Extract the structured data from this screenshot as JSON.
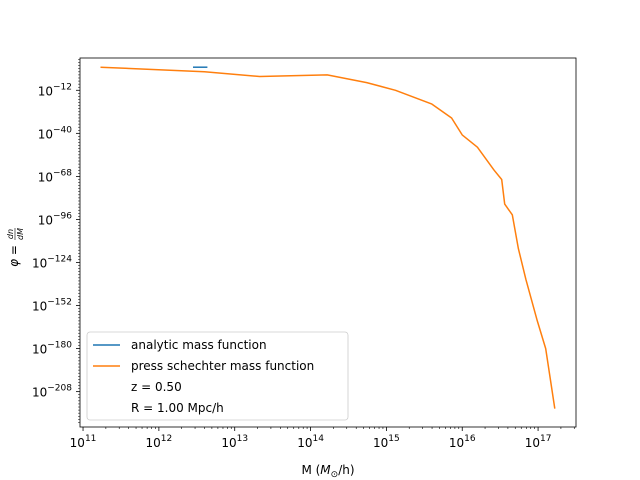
{
  "chart_data": {
    "type": "line",
    "xscale": "log",
    "yscale": "log",
    "xlim_exp": [
      11,
      17
    ],
    "ylim_exp": [
      -230,
      10
    ],
    "x_tick_exponents": [
      11,
      12,
      13,
      14,
      15,
      16,
      17
    ],
    "y_tick_exponents": [
      -12,
      -40,
      -68,
      -96,
      -124,
      -152,
      -180,
      -208
    ],
    "x_tick_labels": [
      "10^11",
      "10^12",
      "10^13",
      "10^14",
      "10^15",
      "10^16",
      "10^17"
    ],
    "y_tick_labels": [
      "10^-12",
      "10^-40",
      "10^-68",
      "10^-96",
      "10^-124",
      "10^-152",
      "10^-180",
      "10^-208"
    ],
    "xlabel": "M (M⊙/h)",
    "ylabel": "φ = dn/dM",
    "ylabel_lhs": "φ =",
    "ylabel_num": "dn",
    "ylabel_den": "dM",
    "xlabel_prefix": "M (",
    "xlabel_sym": "M",
    "xlabel_sub": "⊙",
    "xlabel_suffix": "/h)",
    "legend": {
      "placement": "lower-left",
      "entries": [
        {
          "label": "analytic mass function",
          "color": "#1f77b4",
          "line": true
        },
        {
          "label": "press schechter mass function",
          "color": "#ff7f0e",
          "line": true
        },
        {
          "label": "z = 0.50",
          "line": false
        },
        {
          "label": "R = 1.00 Mpc/h",
          "line": false
        }
      ]
    },
    "series": [
      {
        "name": "analytic mass function",
        "color": "#1f77b4",
        "log10_x": [
          12.45,
          12.64
        ],
        "log10_y": [
          3,
          3
        ]
      },
      {
        "name": "press schechter mass function",
        "color": "#ff7f0e",
        "log10_x": [
          11.23,
          12.6,
          13.33,
          14.22,
          14.74,
          15.12,
          15.6,
          15.86,
          16.0,
          16.2,
          16.42,
          16.52,
          16.56,
          16.66,
          16.74,
          16.84,
          16.99,
          17.1,
          17.22
        ],
        "log10_y": [
          3,
          0,
          -3,
          -2,
          -7,
          -12,
          -21,
          -30,
          -41,
          -49,
          -64,
          -70,
          -86,
          -93,
          -115,
          -135,
          -162,
          -180,
          -219
        ]
      }
    ]
  }
}
